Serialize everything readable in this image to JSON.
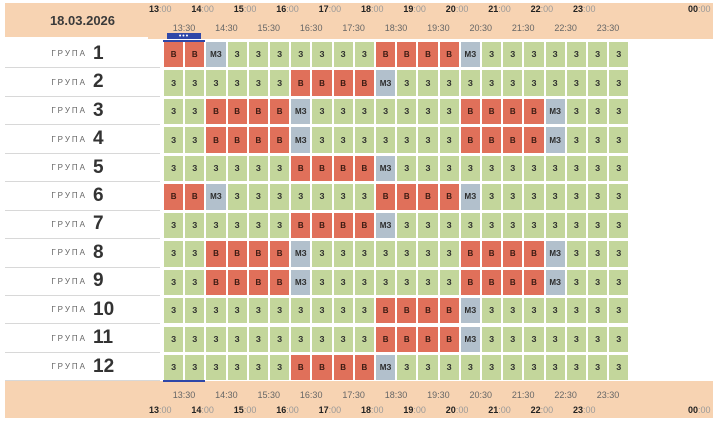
{
  "date": "18.03.2026",
  "hours": [
    "13",
    "14",
    "15",
    "16",
    "17",
    "18",
    "19",
    "20",
    "21",
    "22",
    "23",
    "00"
  ],
  "hour_minutes": "00",
  "half_hours": [
    "13:30",
    "14:30",
    "15:30",
    "16:30",
    "17:30",
    "18:30",
    "19:30",
    "20:30",
    "21:30",
    "22:30",
    "23:30"
  ],
  "group_word": "ГРУПА",
  "now_marker": "•••",
  "status_text": {
    "z": "З",
    "v": "В",
    "m": "МЗ"
  },
  "colors": {
    "z": "#c3d69b",
    "v": "#e0705a",
    "m": "#b2c0cc",
    "header": "#f7d3b2",
    "now": "#2f47a8"
  },
  "groups": [
    {
      "number": "1",
      "cells": "vvmzzzzzzzvvvvmzzzzzzz"
    },
    {
      "number": "2",
      "cells": "zzzzzzvvvvmzzzzzzzzzzz"
    },
    {
      "number": "3",
      "cells": "zzvvvvmzzzzzzzvvvvmzzz"
    },
    {
      "number": "4",
      "cells": "zzvvvvmzzzzzzzvvvvmzzz"
    },
    {
      "number": "5",
      "cells": "zzzzzzvvvvmzzzzzzzzzzz"
    },
    {
      "number": "6",
      "cells": "vvmzzzzzzzvvvvmzzzzzzz"
    },
    {
      "number": "7",
      "cells": "zzzzzzvvvvmzzzzzzzzzzz"
    },
    {
      "number": "8",
      "cells": "zzvvvvmzzzzzzzvvvvmzzz"
    },
    {
      "number": "9",
      "cells": "zzvvvvmzzzzzzzvvvvmzzz"
    },
    {
      "number": "10",
      "cells": "zzzzzzzzzzvvvvmzzzzzzz"
    },
    {
      "number": "11",
      "cells": "zzzzzzzzzzvvvvmzzzzzzz"
    },
    {
      "number": "12",
      "cells": "zzzzzzvvvvmzzzzzzzzzzz"
    }
  ]
}
